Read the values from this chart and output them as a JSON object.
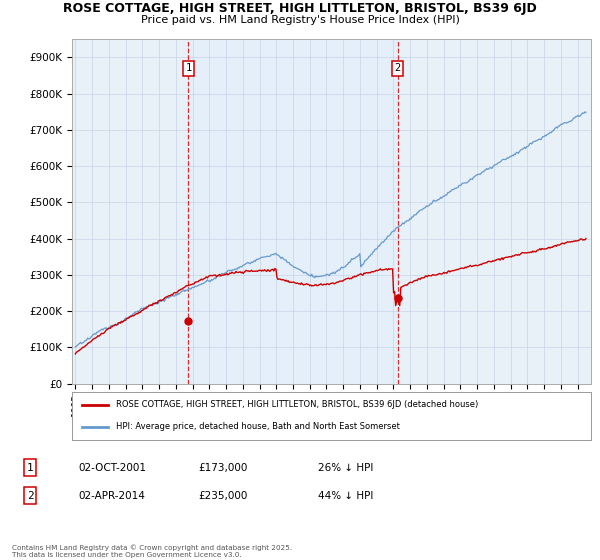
{
  "title_line1": "ROSE COTTAGE, HIGH STREET, HIGH LITTLETON, BRISTOL, BS39 6JD",
  "title_line2": "Price paid vs. HM Land Registry's House Price Index (HPI)",
  "ylabel_ticks": [
    "£0",
    "£100K",
    "£200K",
    "£300K",
    "£400K",
    "£500K",
    "£600K",
    "£700K",
    "£800K",
    "£900K"
  ],
  "ytick_values": [
    0,
    100000,
    200000,
    300000,
    400000,
    500000,
    600000,
    700000,
    800000,
    900000
  ],
  "ylim": [
    0,
    950000
  ],
  "xlim_start": 1994.8,
  "xlim_end": 2025.8,
  "legend_line1": "ROSE COTTAGE, HIGH STREET, HIGH LITTLETON, BRISTOL, BS39 6JD (detached house)",
  "legend_line2": "HPI: Average price, detached house, Bath and North East Somerset",
  "red_color": "#cc0000",
  "blue_color": "#6699cc",
  "shade_color": "#ddeeff",
  "marker1_x": 2001.75,
  "marker2_x": 2014.25,
  "sale1_date": "02-OCT-2001",
  "sale1_price": "£173,000",
  "sale1_hpi": "26% ↓ HPI",
  "sale1_price_val": 173000,
  "sale2_date": "02-APR-2014",
  "sale2_price": "£235,000",
  "sale2_hpi": "44% ↓ HPI",
  "sale2_price_val": 235000,
  "footnote": "Contains HM Land Registry data © Crown copyright and database right 2025.\nThis data is licensed under the Open Government Licence v3.0.",
  "background_color": "#ffffff",
  "plot_bg_color": "#e8f0f8",
  "grid_color": "#c8d4e8"
}
